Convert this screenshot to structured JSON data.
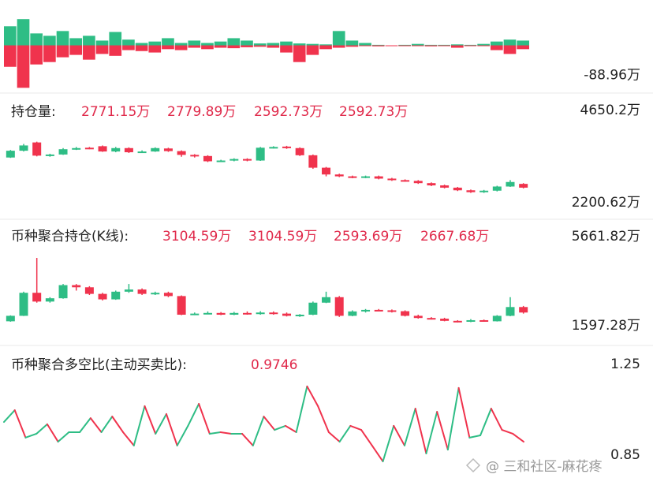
{
  "chart_data": [
    {
      "type": "bar",
      "colors": [
        "#2ebd85",
        "#f0334d"
      ],
      "ylim": [
        -95,
        95
      ],
      "yticks": [
        {
          "value": -88.96,
          "label": "-88.96万"
        }
      ],
      "series": [
        {
          "color": "#2ebd85",
          "values": [
            40,
            55,
            25,
            20,
            30,
            15,
            20,
            10,
            28,
            12,
            5,
            8,
            15,
            5,
            10,
            5,
            8,
            15,
            10,
            4,
            5,
            8,
            4,
            3,
            2,
            30,
            10,
            5,
            1,
            0,
            1,
            3,
            1,
            1,
            2,
            1,
            3,
            8,
            12,
            10
          ]
        },
        {
          "color": "#f0334d",
          "values": [
            -45,
            -88.96,
            -40,
            -35,
            -25,
            -20,
            -30,
            -18,
            -22,
            -10,
            -12,
            -15,
            -8,
            -10,
            -5,
            -8,
            -5,
            -6,
            -4,
            -3,
            -5,
            -15,
            -35,
            -20,
            -8,
            -5,
            -3,
            -1,
            -2,
            -1,
            -1,
            -1,
            -2,
            -1,
            -5,
            -1,
            -1,
            -10,
            -18,
            -8
          ]
        }
      ]
    },
    {
      "type": "candlestick",
      "title": "持仓量:",
      "readouts": [
        "2771.15万",
        "2779.89万",
        "2592.73万",
        "2592.73万"
      ],
      "up_color": "#2ebd85",
      "down_color": "#f0334d",
      "ylim": [
        2200.62,
        4650.2
      ],
      "yticks": [
        {
          "value": 4650.2,
          "label": "4650.2万"
        },
        {
          "value": 2200.62,
          "label": "2200.62万"
        }
      ],
      "candles": [
        [
          3400,
          3580,
          3600,
          3390
        ],
        [
          3580,
          3720,
          3760,
          3560
        ],
        [
          3800,
          3450,
          3820,
          3430
        ],
        [
          3450,
          3480,
          3500,
          3420
        ],
        [
          3480,
          3620,
          3650,
          3470
        ],
        [
          3620,
          3650,
          3680,
          3600
        ],
        [
          3660,
          3640,
          3680,
          3620
        ],
        [
          3700,
          3560,
          3720,
          3550
        ],
        [
          3560,
          3650,
          3680,
          3540
        ],
        [
          3650,
          3540,
          3670,
          3520
        ],
        [
          3540,
          3560,
          3590,
          3520
        ],
        [
          3560,
          3650,
          3670,
          3550
        ],
        [
          3640,
          3570,
          3660,
          3550
        ],
        [
          3570,
          3470,
          3590,
          3420
        ],
        [
          3470,
          3440,
          3490,
          3400
        ],
        [
          3440,
          3300,
          3460,
          3280
        ],
        [
          3300,
          3320,
          3340,
          3280
        ],
        [
          3320,
          3360,
          3380,
          3300
        ],
        [
          3360,
          3320,
          3380,
          3300
        ],
        [
          3320,
          3660,
          3680,
          3310
        ],
        [
          3660,
          3680,
          3700,
          3640
        ],
        [
          3690,
          3650,
          3710,
          3630
        ],
        [
          3650,
          3460,
          3670,
          3440
        ],
        [
          3460,
          3130,
          3480,
          3100
        ],
        [
          3130,
          2950,
          3150,
          2900
        ],
        [
          2950,
          2900,
          2970,
          2880
        ],
        [
          2900,
          2870,
          2920,
          2850
        ],
        [
          2870,
          2900,
          2920,
          2850
        ],
        [
          2900,
          2840,
          2920,
          2820
        ],
        [
          2840,
          2800,
          2860,
          2780
        ],
        [
          2800,
          2780,
          2820,
          2760
        ],
        [
          2780,
          2720,
          2800,
          2700
        ],
        [
          2720,
          2660,
          2740,
          2640
        ],
        [
          2660,
          2600,
          2680,
          2580
        ],
        [
          2600,
          2530,
          2620,
          2510
        ],
        [
          2530,
          2480,
          2550,
          2460
        ],
        [
          2480,
          2520,
          2540,
          2460
        ],
        [
          2520,
          2630,
          2650,
          2500
        ],
        [
          2630,
          2750,
          2800,
          2620
        ],
        [
          2700,
          2600,
          2720,
          2580
        ]
      ]
    },
    {
      "type": "candlestick",
      "title": "币种聚合持仓(K线):",
      "readouts": [
        "3104.59万",
        "3104.59万",
        "2593.69万",
        "2667.68万"
      ],
      "up_color": "#2ebd85",
      "down_color": "#f0334d",
      "ylim": [
        1597.28,
        5661.82
      ],
      "yticks": [
        {
          "value": 5661.82,
          "label": "5661.82万"
        },
        {
          "value": 1597.28,
          "label": "1597.28万"
        }
      ],
      "candles": [
        [
          1800,
          2050,
          2070,
          1780
        ],
        [
          2050,
          3100,
          3150,
          2040
        ],
        [
          3100,
          2700,
          4690,
          2650
        ],
        [
          2700,
          2850,
          2900,
          2650
        ],
        [
          2850,
          3450,
          3500,
          2830
        ],
        [
          3450,
          3350,
          3500,
          3200
        ],
        [
          3350,
          3050,
          3400,
          3000
        ],
        [
          3050,
          2800,
          3100,
          2750
        ],
        [
          2800,
          3150,
          3200,
          2780
        ],
        [
          3150,
          3250,
          3500,
          3100
        ],
        [
          3250,
          3050,
          3300,
          3000
        ],
        [
          3050,
          3100,
          3150,
          3000
        ],
        [
          3100,
          2950,
          3150,
          2900
        ],
        [
          2950,
          2100,
          2980,
          2080
        ],
        [
          2100,
          2150,
          2200,
          2080
        ],
        [
          2150,
          2180,
          2250,
          2120
        ],
        [
          2180,
          2100,
          2220,
          2080
        ],
        [
          2100,
          2180,
          2230,
          2080
        ],
        [
          2180,
          2150,
          2250,
          2100
        ],
        [
          2150,
          2200,
          2260,
          2100
        ],
        [
          2200,
          2150,
          2250,
          2100
        ],
        [
          2150,
          2050,
          2200,
          2020
        ],
        [
          2050,
          2100,
          2130,
          2000
        ],
        [
          2100,
          2650,
          2700,
          2080
        ],
        [
          2650,
          2900,
          3150,
          2630
        ],
        [
          2900,
          2050,
          2950,
          2000
        ],
        [
          2050,
          2250,
          2300,
          2030
        ],
        [
          2250,
          2320,
          2360,
          2200
        ],
        [
          2320,
          2300,
          2360,
          2260
        ],
        [
          2300,
          2260,
          2340,
          2200
        ],
        [
          2260,
          2050,
          2300,
          2020
        ],
        [
          2050,
          1950,
          2100,
          1920
        ],
        [
          1950,
          1920,
          1990,
          1880
        ],
        [
          1920,
          1820,
          1960,
          1800
        ],
        [
          1820,
          1780,
          1850,
          1750
        ],
        [
          1780,
          1850,
          1900,
          1760
        ],
        [
          1850,
          1800,
          1880,
          1780
        ],
        [
          1800,
          2050,
          2080,
          1790
        ],
        [
          2050,
          2450,
          2900,
          2030
        ],
        [
          2450,
          2200,
          2500,
          2150
        ]
      ]
    },
    {
      "type": "line",
      "title": "币种聚合多空比(主动买卖比):",
      "readouts": [
        "0.9746"
      ],
      "up_color": "#2ebd85",
      "down_color": "#f0334d",
      "ylim": [
        0.85,
        1.25
      ],
      "yticks": [
        1.25,
        0.85
      ],
      "values": [
        0.996,
        1.048,
        0.927,
        0.944,
        0.986,
        0.909,
        0.951,
        0.951,
        1.013,
        0.951,
        1.02,
        0.951,
        0.892,
        1.066,
        0.944,
        1.031,
        0.892,
        0.979,
        1.076,
        0.944,
        0.951,
        0.944,
        0.944,
        0.892,
        1.02,
        0.961,
        0.979,
        0.951,
        1.153,
        1.066,
        0.951,
        0.909,
        0.979,
        0.961,
        0.892,
        0.822,
        0.979,
        0.892,
        1.055,
        0.857,
        1.041,
        0.874,
        1.146,
        0.927,
        0.937,
        1.055,
        0.961,
        0.944,
        0.909
      ]
    }
  ],
  "watermark": "@ 三和社区-麻花疼"
}
